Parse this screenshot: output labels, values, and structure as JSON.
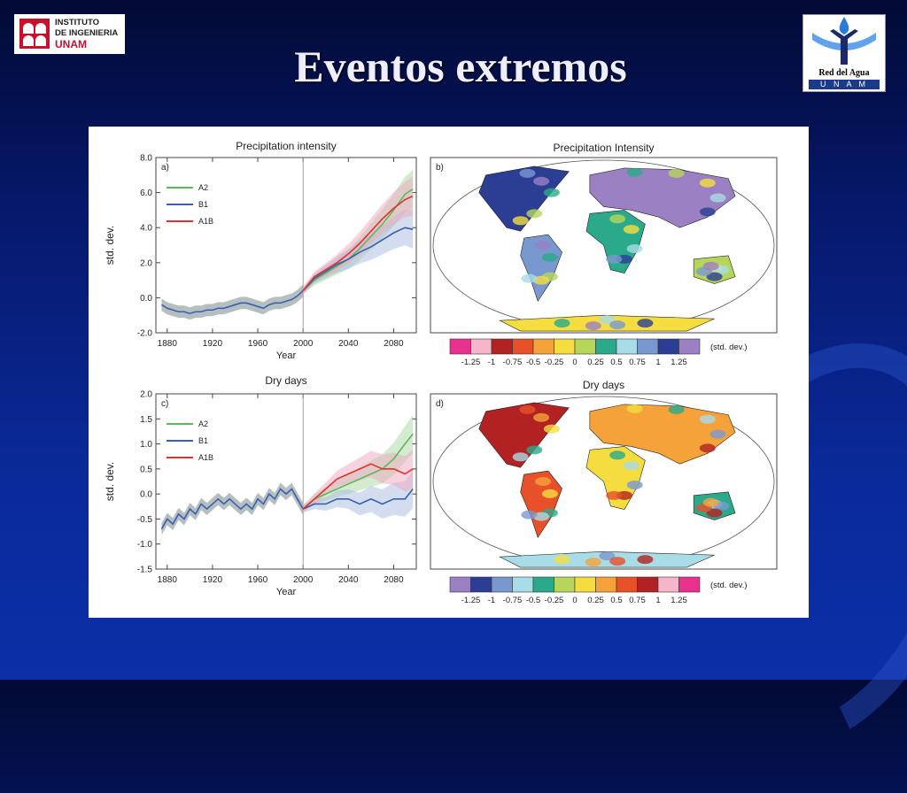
{
  "header": {
    "title": "Eventos extremos",
    "logo_left": {
      "line1": "INSTITUTO",
      "line2": "DE INGENIERIA",
      "line3": "UNAM"
    },
    "logo_right": {
      "line1": "Red del Agua",
      "line2": "U N A M"
    }
  },
  "colors": {
    "A2": "#5cb85c",
    "B1": "#3a5fb0",
    "A1B": "#e03030",
    "background_top": "#020a35",
    "background_bottom": "#0b2fa8"
  },
  "chart_data": [
    {
      "panel": "a)",
      "type": "line",
      "title": "Precipitation intensity",
      "xlabel": "Year",
      "ylabel": "std. dev.",
      "xlim": [
        1870,
        2100
      ],
      "ylim": [
        -2.0,
        8.0
      ],
      "xticks": [
        1880,
        1920,
        1960,
        2000,
        2040,
        2080
      ],
      "yticks": [
        "-2.0",
        "0.0",
        "2.0",
        "4.0",
        "6.0",
        "8.0"
      ],
      "legend": [
        "A2",
        "B1",
        "A1B"
      ],
      "legend_position": "top-left",
      "vline_x": 2000,
      "historical": {
        "x": [
          1875,
          1880,
          1885,
          1890,
          1895,
          1900,
          1905,
          1910,
          1915,
          1920,
          1925,
          1930,
          1935,
          1940,
          1945,
          1950,
          1955,
          1960,
          1965,
          1970,
          1975,
          1980,
          1985,
          1990,
          1995,
          2000
        ],
        "y": [
          -0.4,
          -0.6,
          -0.7,
          -0.8,
          -0.8,
          -0.9,
          -0.8,
          -0.8,
          -0.7,
          -0.7,
          -0.6,
          -0.6,
          -0.5,
          -0.4,
          -0.3,
          -0.3,
          -0.4,
          -0.5,
          -0.6,
          -0.4,
          -0.3,
          -0.3,
          -0.2,
          -0.1,
          0.1,
          0.4
        ]
      },
      "series": [
        {
          "name": "A2",
          "x": [
            2000,
            2010,
            2020,
            2030,
            2040,
            2050,
            2060,
            2070,
            2080,
            2090,
            2097
          ],
          "y": [
            0.4,
            1.0,
            1.4,
            1.8,
            2.2,
            2.8,
            3.5,
            4.2,
            5.0,
            5.9,
            6.2
          ]
        },
        {
          "name": "B1",
          "x": [
            2000,
            2010,
            2020,
            2030,
            2040,
            2050,
            2060,
            2070,
            2080,
            2090,
            2097
          ],
          "y": [
            0.4,
            1.1,
            1.5,
            1.9,
            2.2,
            2.6,
            2.9,
            3.3,
            3.7,
            4.0,
            3.9
          ]
        },
        {
          "name": "A1B",
          "x": [
            2000,
            2010,
            2020,
            2030,
            2040,
            2050,
            2060,
            2070,
            2080,
            2090,
            2097
          ],
          "y": [
            0.4,
            1.2,
            1.6,
            2.0,
            2.5,
            3.1,
            3.8,
            4.5,
            5.1,
            5.6,
            5.8
          ]
        }
      ]
    },
    {
      "panel": "c)",
      "type": "line",
      "title": "Dry days",
      "xlabel": "Year",
      "ylabel": "std. dev.",
      "xlim": [
        1870,
        2100
      ],
      "ylim": [
        -1.5,
        2.0
      ],
      "xticks": [
        1880,
        1920,
        1960,
        2000,
        2040,
        2080
      ],
      "yticks": [
        "-1.5",
        "-1.0",
        "-0.5",
        "0.0",
        "0.5",
        "1.0",
        "1.5",
        "2.0"
      ],
      "legend": [
        "A2",
        "B1",
        "A1B"
      ],
      "legend_position": "top-left",
      "vline_x": 2000,
      "historical": {
        "x": [
          1875,
          1880,
          1885,
          1890,
          1895,
          1900,
          1905,
          1910,
          1915,
          1920,
          1925,
          1930,
          1935,
          1940,
          1945,
          1950,
          1955,
          1960,
          1965,
          1970,
          1975,
          1980,
          1985,
          1990,
          1995,
          2000
        ],
        "y": [
          -0.7,
          -0.5,
          -0.6,
          -0.4,
          -0.5,
          -0.3,
          -0.4,
          -0.2,
          -0.3,
          -0.2,
          -0.1,
          -0.2,
          -0.1,
          -0.2,
          -0.3,
          -0.2,
          -0.3,
          -0.1,
          -0.2,
          0.0,
          -0.1,
          0.1,
          0.0,
          0.1,
          -0.1,
          -0.3
        ]
      },
      "series": [
        {
          "name": "A2",
          "x": [
            2000,
            2010,
            2020,
            2030,
            2040,
            2050,
            2060,
            2070,
            2080,
            2090,
            2097
          ],
          "y": [
            -0.3,
            -0.1,
            0.0,
            0.1,
            0.2,
            0.3,
            0.4,
            0.5,
            0.7,
            1.0,
            1.2
          ]
        },
        {
          "name": "B1",
          "x": [
            2000,
            2010,
            2020,
            2030,
            2040,
            2050,
            2060,
            2070,
            2080,
            2090,
            2097
          ],
          "y": [
            -0.3,
            -0.2,
            -0.2,
            -0.1,
            -0.1,
            -0.2,
            -0.1,
            -0.2,
            -0.1,
            -0.1,
            0.1
          ]
        },
        {
          "name": "A1B",
          "x": [
            2000,
            2010,
            2020,
            2030,
            2040,
            2050,
            2060,
            2070,
            2080,
            2090,
            2097
          ],
          "y": [
            -0.3,
            -0.1,
            0.1,
            0.3,
            0.4,
            0.5,
            0.6,
            0.5,
            0.5,
            0.4,
            0.5
          ]
        }
      ]
    },
    {
      "panel": "b)",
      "type": "heatmap",
      "title": "Precipitation Intensity",
      "colorbar_labels": [
        "-1.25",
        "-1",
        "-0.75",
        "-0.5",
        "-0.25",
        "0",
        "0.25",
        "0.5",
        "0.75",
        "1",
        "1.25"
      ],
      "colorbar_colors": [
        "#e8308f",
        "#f4b6c8",
        "#b22222",
        "#e8502a",
        "#f5a23a",
        "#f5dd40",
        "#b6d65a",
        "#2aaa8a",
        "#a8dce6",
        "#7a98d0",
        "#2c3e94",
        "#9b80c4"
      ],
      "colorbar_unit": "(std. dev.)"
    },
    {
      "panel": "d)",
      "type": "heatmap",
      "title": "Dry days",
      "colorbar_labels": [
        "-1.25",
        "-1",
        "-0.75",
        "-0.5",
        "-0.25",
        "0",
        "0.25",
        "0.5",
        "0.75",
        "1",
        "1.25"
      ],
      "colorbar_colors": [
        "#9b80c4",
        "#2c3e94",
        "#7a98d0",
        "#a8dce6",
        "#2aaa8a",
        "#b6d65a",
        "#f5dd40",
        "#f5a23a",
        "#e8502a",
        "#b22222",
        "#f4b6c8",
        "#e8308f"
      ],
      "colorbar_unit": "(std. dev.)"
    }
  ]
}
